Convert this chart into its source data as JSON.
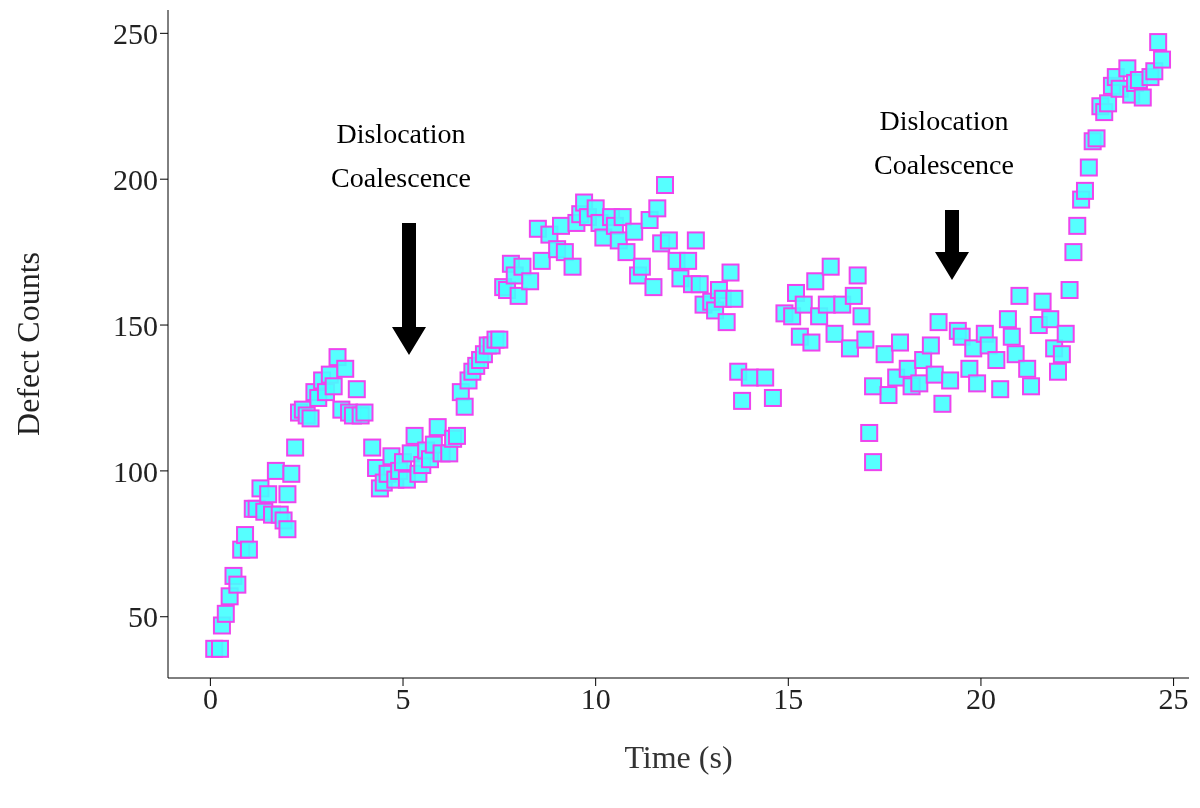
{
  "chart_data": {
    "type": "scatter",
    "xlabel": "Time (s)",
    "ylabel": "Defect Counts",
    "xlim": [
      -1.1,
      25.4
    ],
    "ylim": [
      29,
      258
    ],
    "xticks": [
      0,
      5,
      10,
      15,
      20,
      25
    ],
    "yticks": [
      50,
      100,
      150,
      200,
      250
    ],
    "grid": false,
    "legend": false,
    "marker": "square",
    "annotations": [
      "Dislocation\nCoalescence",
      "Dislocation\nCoalescence"
    ],
    "series": [
      {
        "color": "#44ffff",
        "x": [
          0.1,
          0.25,
          0.3,
          0.4,
          0.5,
          0.6,
          0.7,
          0.8,
          0.9,
          1.0,
          1.1,
          1.2,
          1.3,
          1.4,
          1.5,
          1.6,
          1.7,
          1.8,
          1.9,
          2.0,
          2.0,
          2.1,
          2.2,
          2.3,
          2.4,
          2.5,
          2.6,
          2.7,
          2.8,
          2.9,
          3.0,
          3.1,
          3.2,
          3.3,
          3.4,
          3.5,
          3.6,
          3.7,
          3.8,
          3.9,
          4.0,
          4.2,
          4.3,
          4.4,
          4.5,
          4.6,
          4.7,
          4.8,
          4.9,
          5.0,
          5.1,
          5.2,
          5.3,
          5.4,
          5.5,
          5.6,
          5.7,
          5.8,
          5.9,
          6.0,
          6.2,
          6.3,
          6.4,
          6.5,
          6.6,
          6.7,
          6.8,
          6.9,
          7.0,
          7.1,
          7.2,
          7.3,
          7.4,
          7.5,
          7.6,
          7.7,
          7.8,
          7.9,
          8.0,
          8.1,
          8.3,
          8.5,
          8.6,
          8.8,
          9.0,
          9.1,
          9.2,
          9.4,
          9.5,
          9.6,
          9.7,
          9.8,
          10.0,
          10.1,
          10.2,
          10.4,
          10.5,
          10.6,
          10.7,
          10.8,
          11.0,
          11.1,
          11.2,
          11.4,
          11.5,
          11.6,
          11.7,
          11.8,
          11.9,
          12.1,
          12.2,
          12.4,
          12.5,
          12.6,
          12.7,
          12.8,
          13.0,
          13.1,
          13.2,
          13.3,
          13.4,
          13.5,
          13.6,
          13.7,
          13.8,
          14.0,
          14.4,
          14.6,
          14.9,
          15.1,
          15.2,
          15.3,
          15.4,
          15.6,
          15.7,
          15.8,
          16.0,
          16.1,
          16.2,
          16.4,
          16.6,
          16.7,
          16.8,
          16.9,
          17.0,
          17.1,
          17.2,
          17.2,
          17.5,
          17.6,
          17.8,
          17.9,
          18.1,
          18.2,
          18.4,
          18.5,
          18.7,
          18.8,
          18.9,
          19.0,
          19.2,
          19.4,
          19.5,
          19.7,
          19.8,
          19.9,
          20.1,
          20.2,
          20.4,
          20.5,
          20.7,
          20.8,
          20.9,
          21.0,
          21.2,
          21.3,
          21.5,
          21.6,
          21.8,
          21.9,
          22.0,
          22.1,
          22.2,
          22.3,
          22.4,
          22.5,
          22.6,
          22.7,
          22.8,
          22.9,
          23.0,
          23.1,
          23.2,
          23.3,
          23.4,
          23.5,
          23.6,
          23.8,
          23.9,
          24.0,
          24.1,
          24.2,
          24.4,
          24.5,
          24.6,
          24.7
        ],
        "values": [
          39,
          39,
          47,
          51,
          57,
          64,
          61,
          73,
          78,
          73,
          87,
          87,
          94,
          86,
          92,
          85,
          100,
          85,
          83,
          80,
          92,
          99,
          108,
          120,
          121,
          119,
          118,
          127,
          125,
          131,
          127,
          133,
          129,
          139,
          121,
          135,
          120,
          119,
          128,
          119,
          120,
          108,
          101,
          94,
          96,
          99,
          105,
          97,
          100,
          103,
          97,
          106,
          112,
          99,
          102,
          107,
          104,
          109,
          115,
          106,
          106,
          111,
          112,
          127,
          122,
          131,
          134,
          136,
          138,
          140,
          143,
          143,
          145,
          145,
          163,
          162,
          171,
          167,
          160,
          170,
          165,
          183,
          172,
          181,
          176,
          184,
          175,
          170,
          185,
          188,
          192,
          187,
          190,
          185,
          180,
          187,
          184,
          179,
          187,
          175,
          182,
          167,
          170,
          186,
          163,
          190,
          178,
          198,
          179,
          172,
          166,
          172,
          164,
          179,
          164,
          157,
          158,
          155,
          162,
          159,
          151,
          168,
          159,
          134,
          124,
          132,
          132,
          125,
          154,
          153,
          161,
          146,
          157,
          144,
          165,
          153,
          157,
          170,
          147,
          157,
          142,
          160,
          167,
          153,
          145,
          113,
          103,
          129,
          140,
          126,
          132,
          144,
          135,
          129,
          130,
          138,
          143,
          133,
          151,
          123,
          131,
          148,
          146,
          135,
          142,
          130,
          147,
          143,
          138,
          128,
          152,
          146,
          140,
          160,
          135,
          129,
          150,
          158,
          152,
          142,
          134,
          140,
          147,
          162,
          175,
          184,
          193,
          196,
          204,
          213,
          214,
          225,
          223,
          226,
          232,
          235,
          231,
          238,
          229,
          233,
          234,
          228,
          235,
          237,
          247,
          241
        ]
      }
    ]
  }
}
